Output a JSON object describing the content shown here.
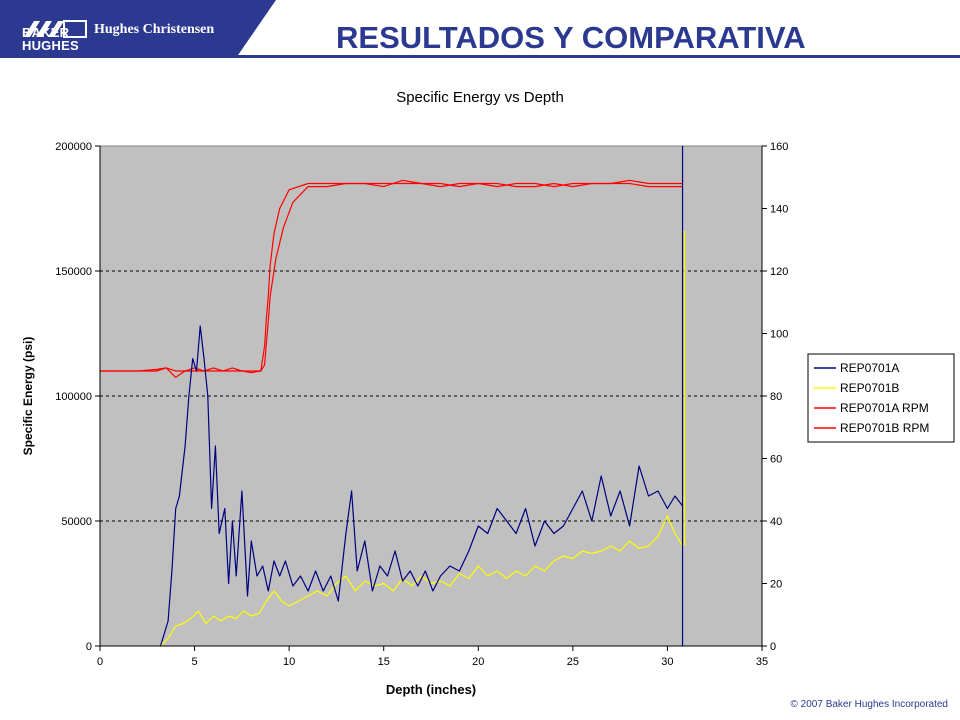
{
  "header": {
    "logo_text_top": "BAKER",
    "logo_text_bottom": "HUGHES",
    "company_name": "Hughes Christensen",
    "slide_title": "RESULTADOS Y COMPARATIVA"
  },
  "footer": {
    "copyright": "© 2007 Baker Hughes Incorporated"
  },
  "colors": {
    "brand_blue": "#2b3990",
    "plot_background": "#c0c0c0",
    "series_a": "#000080",
    "series_b": "#ffff00",
    "rpm": "#ff0000"
  },
  "chart_data": {
    "type": "line",
    "title": "Specific Energy vs Depth",
    "xlabel": "Depth (inches)",
    "ylabel": "Specific Energy (psi)",
    "y2label": "",
    "xlim": [
      0,
      35
    ],
    "ylim": [
      0,
      200000
    ],
    "y2lim": [
      0,
      160
    ],
    "x_ticks": [
      0,
      5,
      10,
      15,
      20,
      25,
      30,
      35
    ],
    "y_ticks": [
      0,
      50000,
      100000,
      150000,
      200000
    ],
    "y2_ticks": [
      0,
      20,
      40,
      60,
      80,
      100,
      120,
      140,
      160
    ],
    "grid": "horizontal dashed",
    "legend_position": "right",
    "series": [
      {
        "name": "REP0701A",
        "axis": "left",
        "color": "#000080",
        "x": [
          3.2,
          3.6,
          3.8,
          4.0,
          4.2,
          4.5,
          4.7,
          4.9,
          5.1,
          5.3,
          5.5,
          5.7,
          5.9,
          6.1,
          6.3,
          6.6,
          6.8,
          7.0,
          7.2,
          7.5,
          7.8,
          8.0,
          8.3,
          8.6,
          8.9,
          9.2,
          9.5,
          9.8,
          10.2,
          10.6,
          11.0,
          11.4,
          11.8,
          12.2,
          12.6,
          13.0,
          13.3,
          13.6,
          14.0,
          14.4,
          14.8,
          15.2,
          15.6,
          16.0,
          16.4,
          16.8,
          17.2,
          17.6,
          18.0,
          18.5,
          19.0,
          19.5,
          20.0,
          20.5,
          21.0,
          21.5,
          22.0,
          22.5,
          23.0,
          23.5,
          24.0,
          24.5,
          25.0,
          25.5,
          26.0,
          26.5,
          27.0,
          27.5,
          28.0,
          28.5,
          29.0,
          29.5,
          30.0,
          30.4,
          30.8
        ],
        "y": [
          0,
          10000,
          30000,
          55000,
          60000,
          80000,
          100000,
          115000,
          110000,
          128000,
          115000,
          100000,
          55000,
          80000,
          45000,
          55000,
          25000,
          50000,
          28000,
          62000,
          20000,
          42000,
          28000,
          32000,
          22000,
          34000,
          28000,
          34000,
          24000,
          28000,
          22000,
          30000,
          22000,
          28000,
          18000,
          45000,
          62000,
          30000,
          42000,
          22000,
          32000,
          28000,
          38000,
          26000,
          30000,
          24000,
          30000,
          22000,
          28000,
          32000,
          30000,
          38000,
          48000,
          45000,
          55000,
          50000,
          45000,
          55000,
          40000,
          50000,
          45000,
          48000,
          55000,
          62000,
          50000,
          68000,
          52000,
          62000,
          48000,
          72000,
          60000,
          62000,
          55000,
          60000,
          56000
        ]
      },
      {
        "name": "REP0701B",
        "axis": "left",
        "color": "#ffff00",
        "x": [
          3.2,
          3.6,
          4.0,
          4.4,
          4.8,
          5.2,
          5.6,
          6.0,
          6.4,
          6.8,
          7.2,
          7.6,
          8.0,
          8.4,
          8.8,
          9.2,
          9.6,
          10.0,
          10.5,
          11.0,
          11.5,
          12.0,
          12.5,
          13.0,
          13.5,
          14.0,
          14.5,
          15.0,
          15.5,
          16.0,
          16.5,
          17.0,
          17.5,
          18.0,
          18.5,
          19.0,
          19.5,
          20.0,
          20.5,
          21.0,
          21.5,
          22.0,
          22.5,
          23.0,
          23.5,
          24.0,
          24.5,
          25.0,
          25.5,
          26.0,
          26.5,
          27.0,
          27.5,
          28.0,
          28.5,
          29.0,
          29.5,
          30.0,
          30.4,
          30.8
        ],
        "y": [
          0,
          3000,
          8000,
          9000,
          11000,
          14000,
          9000,
          12000,
          10000,
          12000,
          11000,
          14000,
          12000,
          13000,
          18000,
          22000,
          18000,
          16000,
          18000,
          20000,
          22000,
          20000,
          25000,
          28000,
          22000,
          26000,
          24000,
          25000,
          22000,
          27000,
          24000,
          28000,
          25000,
          26000,
          24000,
          29000,
          27000,
          32000,
          28000,
          30000,
          27000,
          30000,
          28000,
          32000,
          30000,
          34000,
          36000,
          35000,
          38000,
          37000,
          38000,
          40000,
          38000,
          42000,
          39000,
          40000,
          44000,
          52000,
          45000,
          40000
        ]
      },
      {
        "name": "REP0701A RPM",
        "axis": "right",
        "color": "#ff0000",
        "x": [
          0,
          1,
          2,
          3,
          3.5,
          4.0,
          4.5,
          5.0,
          5.5,
          6.0,
          6.5,
          7.0,
          7.5,
          8.0,
          8.5,
          8.7,
          8.8,
          8.9,
          9.0,
          9.2,
          9.5,
          10.0,
          11,
          12,
          13,
          14,
          15,
          16,
          17,
          18,
          19,
          20,
          21,
          22,
          23,
          24,
          25,
          26,
          27,
          28,
          29,
          30,
          30.8
        ],
        "y": [
          88,
          88,
          88,
          88.5,
          89,
          86,
          88,
          89,
          88,
          89,
          88,
          89,
          88,
          88,
          88,
          96,
          105,
          112,
          122,
          132,
          140,
          146,
          148,
          148,
          148,
          148,
          148,
          148,
          148,
          147,
          148,
          148,
          147,
          148,
          148,
          147,
          148,
          148,
          148,
          149,
          148,
          148,
          148
        ]
      },
      {
        "name": "REP0701B RPM",
        "axis": "right",
        "color": "#ff0000",
        "x": [
          0,
          1,
          2,
          3,
          3.5,
          4.0,
          4.5,
          5.0,
          5.5,
          6.0,
          6.5,
          7.0,
          7.5,
          8.0,
          8.5,
          8.7,
          8.8,
          8.9,
          9.0,
          9.3,
          9.7,
          10.2,
          11,
          12,
          13,
          14,
          15,
          16,
          17,
          18,
          19,
          20,
          21,
          22,
          23,
          24,
          25,
          26,
          27,
          28,
          29,
          30,
          30.8
        ],
        "y": [
          88,
          88,
          88,
          88,
          89,
          88,
          88,
          88,
          88,
          88,
          88,
          88,
          88,
          87.5,
          88,
          90,
          97,
          104,
          112,
          124,
          134,
          142,
          147,
          147,
          148,
          148,
          147,
          149,
          148,
          148,
          147,
          148,
          148,
          147,
          147,
          148,
          147,
          148,
          148,
          148,
          147,
          147,
          147
        ]
      }
    ],
    "annotations": [
      {
        "type": "vertical-line",
        "x": 30.8,
        "color": "#000080"
      },
      {
        "type": "spike",
        "series": "REP0701B",
        "x": 30.9,
        "y": 166000
      }
    ]
  }
}
